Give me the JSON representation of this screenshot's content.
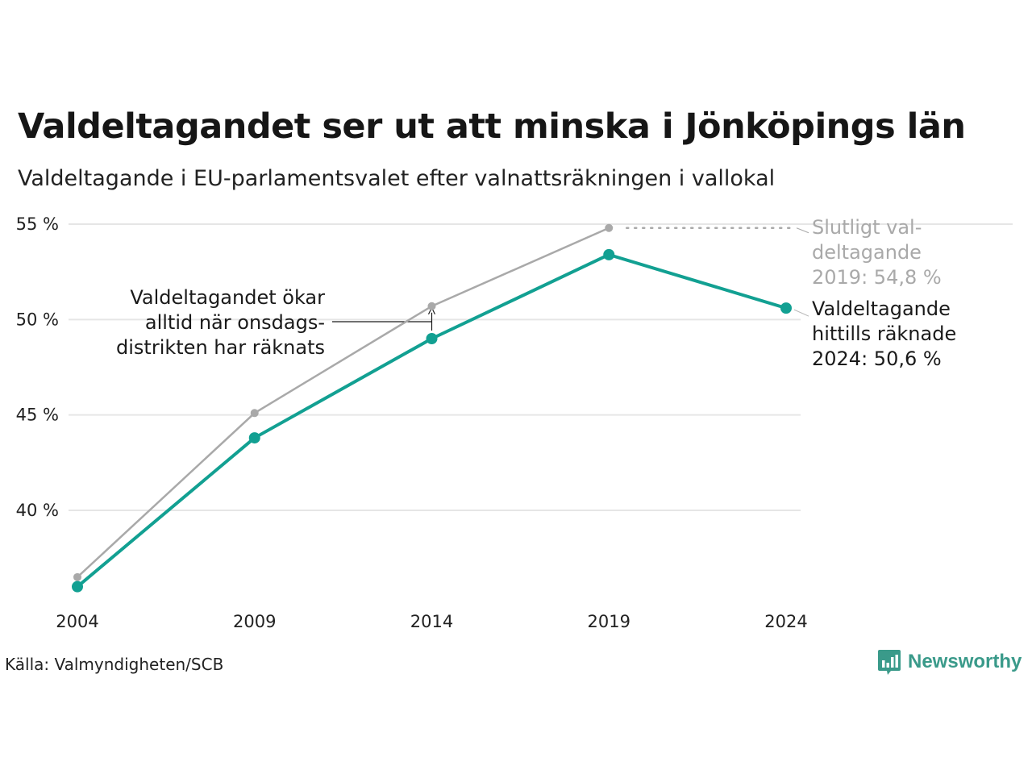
{
  "title": "Valdeltagandet ser ut att minska i Jönköpings län",
  "subtitle": "Valdeltagande i EU-parlamentsvalet efter valnattsräkningen i vallokal",
  "source": "Källa: Valmyndigheten/SCB",
  "brand": "Newsworthy",
  "colors": {
    "final": "#a9a9a9",
    "counted": "#12a092",
    "grid": "#e6e6e6"
  },
  "chart_data": {
    "type": "line",
    "x": [
      2004,
      2009,
      2014,
      2019,
      2024
    ],
    "y_ticks": [
      40,
      45,
      50,
      55
    ],
    "y_tick_labels": [
      "40 %",
      "45 %",
      "50 %",
      "55 %"
    ],
    "x_tick_labels": [
      "2004",
      "2009",
      "2014",
      "2019",
      "2024"
    ],
    "ylim": [
      34.6,
      55.4
    ],
    "series": [
      {
        "key": "final",
        "values": [
          36.5,
          45.1,
          50.7,
          54.8,
          null
        ]
      },
      {
        "key": "counted",
        "values": [
          36.0,
          43.8,
          49.0,
          53.4,
          50.6
        ]
      }
    ],
    "annotations": {
      "final": [
        "Slutligt val-",
        "deltagande",
        "2019: 54,8 %"
      ],
      "counted": [
        "Valdeltagande",
        "hittills räknade",
        "2024: 50,6 %"
      ],
      "note": [
        "Valdeltagandet ökar",
        "alltid när onsdags-",
        "distrikten har räknats"
      ]
    },
    "grid": true
  }
}
